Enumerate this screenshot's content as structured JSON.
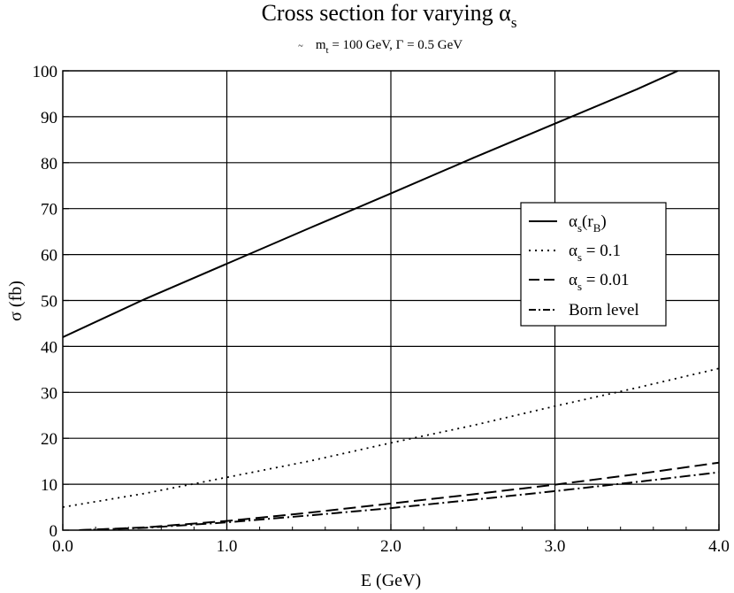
{
  "chart_data": {
    "type": "line",
    "title_main": "Cross section for varying α",
    "title_sub": "s",
    "subtitle": {
      "m": "m",
      "m_sub": "t",
      "m_sub_mark": "~",
      "rest": " = 100 GeV, Γ = 0.5 GeV"
    },
    "xlabel": "E (GeV)",
    "ylabel": "σ (fb)",
    "xlim": [
      0.0,
      4.0
    ],
    "ylim": [
      0,
      100
    ],
    "xticks": [
      0.0,
      1.0,
      2.0,
      3.0,
      4.0
    ],
    "xtick_labels": [
      "0.0",
      "1.0",
      "2.0",
      "3.0",
      "4.0"
    ],
    "yticks": [
      0,
      10,
      20,
      30,
      40,
      50,
      60,
      70,
      80,
      90,
      100
    ],
    "ytick_labels": [
      "0",
      "10",
      "20",
      "30",
      "40",
      "50",
      "60",
      "70",
      "80",
      "90",
      "100"
    ],
    "grid": true,
    "legend_position": "right-middle",
    "series": [
      {
        "name": "αs(rB)",
        "legend": {
          "main": "α",
          "sub": "s",
          "paren_open": "(r",
          "paren_sub": "B",
          "paren_close": ")"
        },
        "style": "solid",
        "x": [
          0.0,
          0.5,
          1.0,
          1.5,
          2.0,
          2.5,
          3.0,
          3.5,
          3.75
        ],
        "y": [
          42.0,
          50.3,
          58.0,
          65.7,
          73.3,
          81.0,
          88.5,
          96.0,
          100.0
        ]
      },
      {
        "name": "αs = 0.1",
        "legend": {
          "main": "α",
          "sub": "s",
          "rest": " = 0.1"
        },
        "style": "dotted",
        "x": [
          0.0,
          0.5,
          1.0,
          1.5,
          2.0,
          2.5,
          3.0,
          3.5,
          4.0
        ],
        "y": [
          5.0,
          8.0,
          11.5,
          15.0,
          19.0,
          22.8,
          27.0,
          31.0,
          35.2
        ]
      },
      {
        "name": "αs = 0.01",
        "legend": {
          "main": "α",
          "sub": "s",
          "rest": " = 0.01"
        },
        "style": "dashed",
        "x": [
          0.1,
          0.5,
          1.0,
          1.5,
          2.0,
          2.5,
          3.0,
          3.5,
          4.0
        ],
        "y": [
          0.0,
          0.6,
          2.0,
          3.8,
          5.8,
          7.8,
          9.9,
          12.2,
          14.7
        ]
      },
      {
        "name": "Born level",
        "legend": {
          "main": "Born level"
        },
        "style": "dashdot",
        "x": [
          0.1,
          0.5,
          1.0,
          1.5,
          2.0,
          2.5,
          3.0,
          3.5,
          4.0
        ],
        "y": [
          0.0,
          0.5,
          1.7,
          3.2,
          4.8,
          6.6,
          8.5,
          10.5,
          12.6
        ]
      }
    ]
  }
}
